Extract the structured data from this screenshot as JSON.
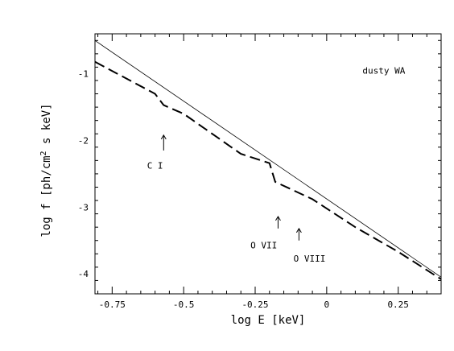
{
  "chart_data": {
    "type": "line",
    "xlabel": "log E [keV]",
    "ylabel_prefix": "log f [ph/cm",
    "ylabel_sup": "2",
    "ylabel_suffix": " s keV]",
    "xlim": [
      -0.81,
      0.4
    ],
    "ylim": [
      -4.3,
      -0.4
    ],
    "x_ticks": [
      -0.75,
      -0.5,
      -0.25,
      0,
      0.25
    ],
    "x_tick_labels": [
      "-0.75",
      "-0.5",
      "-0.25",
      "0",
      "0.25"
    ],
    "y_ticks": [
      -4,
      -3,
      -2,
      -1
    ],
    "y_tick_labels": [
      "-4",
      "-3",
      "-2",
      "-1"
    ],
    "grid": false,
    "series": [
      {
        "style": "solid-thin",
        "x": [
          -0.81,
          0.4
        ],
        "y": [
          -0.5,
          -4.05
        ]
      },
      {
        "style": "dashed",
        "x": [
          -0.81,
          -0.6,
          -0.57,
          -0.5,
          -0.3,
          -0.2,
          -0.18,
          -0.05,
          0.1,
          0.25,
          0.4
        ],
        "y": [
          -0.82,
          -1.3,
          -1.47,
          -1.6,
          -2.2,
          -2.34,
          -2.62,
          -2.88,
          -3.3,
          -3.67,
          -4.08
        ]
      }
    ],
    "annotations": [
      {
        "text": "dusty WA",
        "x": 0.2,
        "y": -1.0
      },
      {
        "text": "C I",
        "x": -0.6,
        "y": -2.42
      },
      {
        "text": "O VII",
        "x": -0.22,
        "y": -3.62
      },
      {
        "text": "O VIII",
        "x": -0.06,
        "y": -3.82
      }
    ],
    "arrows": [
      {
        "x": -0.57,
        "y_from": -2.15,
        "y_to": -1.92
      },
      {
        "x": -0.17,
        "y_from": -3.32,
        "y_to": -3.14
      },
      {
        "x": -0.097,
        "y_from": -3.5,
        "y_to": -3.32
      }
    ]
  }
}
